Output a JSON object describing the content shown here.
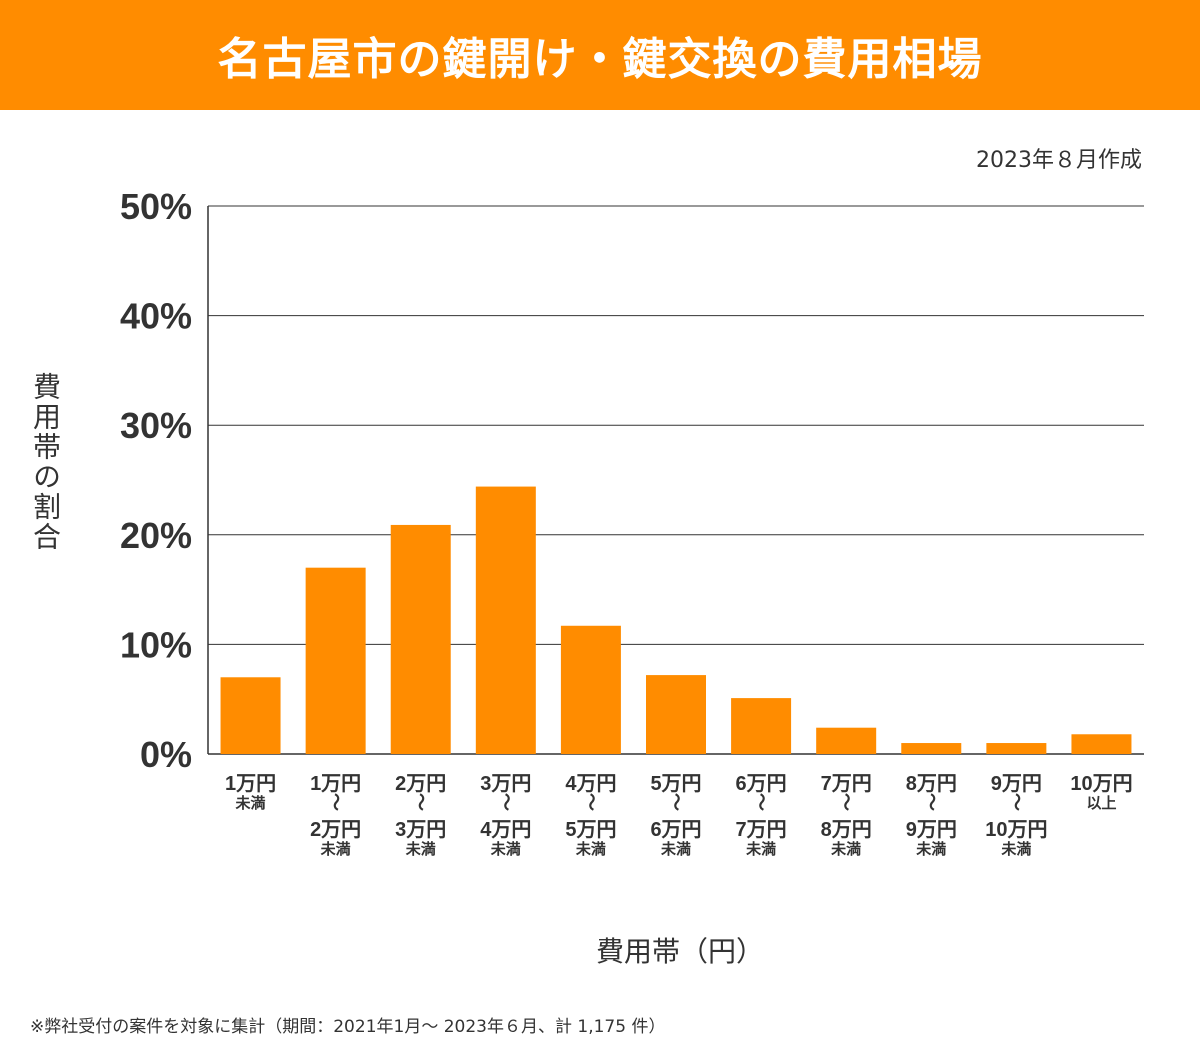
{
  "title": "名古屋市の鍵開け・鍵交換の費用相場",
  "created": "2023年８月作成",
  "footnote": "※弊社受付の案件を対象に集計（期間：2021年1月～ 2023年６月、計 1,175 件）",
  "colors": {
    "accent": "#ff8c00",
    "bar": "#ff8c00",
    "grid": "#333333",
    "text": "#333333"
  },
  "chart_data": {
    "type": "bar",
    "title": "名古屋市の鍵開け・鍵交換の費用相場",
    "xlabel": "費用帯（円）",
    "ylabel": "費用帯の割合",
    "ylim": [
      0,
      50
    ],
    "yticks": [
      "0%",
      "10%",
      "20%",
      "30%",
      "40%",
      "50%"
    ],
    "grid": true,
    "categories": [
      [
        "1万円",
        "未満"
      ],
      [
        "1万円",
        "〜",
        "2万円",
        "未満"
      ],
      [
        "2万円",
        "〜",
        "3万円",
        "未満"
      ],
      [
        "3万円",
        "〜",
        "4万円",
        "未満"
      ],
      [
        "4万円",
        "〜",
        "5万円",
        "未満"
      ],
      [
        "5万円",
        "〜",
        "6万円",
        "未満"
      ],
      [
        "6万円",
        "〜",
        "7万円",
        "未満"
      ],
      [
        "7万円",
        "〜",
        "8万円",
        "未満"
      ],
      [
        "8万円",
        "〜",
        "9万円",
        "未満"
      ],
      [
        "9万円",
        "〜",
        "10万円",
        "未満"
      ],
      [
        "10万円",
        "以上"
      ]
    ],
    "values": [
      7.0,
      17.0,
      20.9,
      24.4,
      11.7,
      7.2,
      5.1,
      2.4,
      1.0,
      1.0,
      1.8
    ]
  }
}
